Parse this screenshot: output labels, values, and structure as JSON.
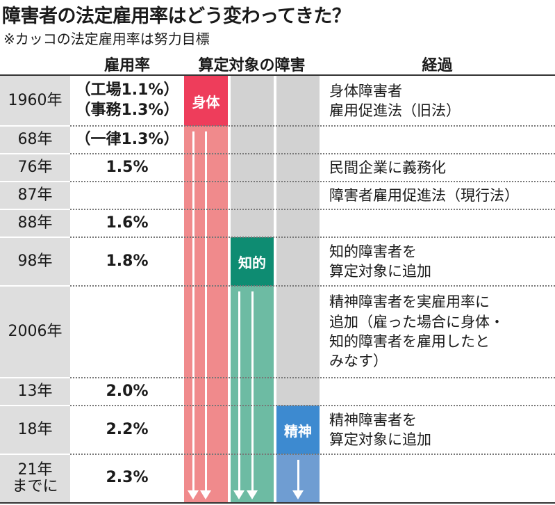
{
  "title": "障害者の法定雇用率はどう変わってきた？",
  "subtitle": "※カッコの法定雇用率は努力目標",
  "headers": {
    "rate": "雇用率",
    "disability": "算定対象の障害",
    "history": "経過"
  },
  "disability_labels": {
    "physical": "身体",
    "intellectual": "知的",
    "mental": "精神"
  },
  "colors": {
    "physical": "#ee3d5b",
    "physical_light": "#f08a8c",
    "intellectual": "#0e8c72",
    "intellectual_light": "#6dbba3",
    "mental": "#3d8ad0",
    "mental_light": "#6f9dd2",
    "year_bg": "#dedede",
    "inactive_bg": "#d2d2d2"
  },
  "rows": [
    {
      "year": "1960年",
      "rate": [
        "（工場1.1%）",
        "（事務1.3%）"
      ],
      "note": [
        "身体障害者",
        "雇用促進法（旧法）"
      ]
    },
    {
      "year": "68年",
      "rate": [
        "（一律1.3%）"
      ],
      "note": []
    },
    {
      "year": "76年",
      "rate": [
        "1.5%"
      ],
      "note": [
        "民間企業に義務化"
      ]
    },
    {
      "year": "87年",
      "rate": [],
      "note": [
        "障害者雇用促進法（現行法）"
      ]
    },
    {
      "year": "88年",
      "rate": [
        "1.6%"
      ],
      "note": []
    },
    {
      "year": "98年",
      "rate": [
        "1.8%"
      ],
      "note": [
        "知的障害者を",
        "算定対象に追加"
      ]
    },
    {
      "year": "2006年",
      "rate": [],
      "note": [
        "精神障害者を実雇用率に",
        "追加（雇った場合に身体・",
        "知的障害者を雇用したと",
        "みなす）"
      ]
    },
    {
      "year": "13年",
      "rate": [
        "2.0%"
      ],
      "note": []
    },
    {
      "year": "18年",
      "rate": [
        "2.2%"
      ],
      "note": [
        "精神障害者を",
        "算定対象に追加"
      ]
    },
    {
      "year": "21年\nまでに",
      "rate": [
        "2.3%"
      ],
      "note": []
    }
  ]
}
